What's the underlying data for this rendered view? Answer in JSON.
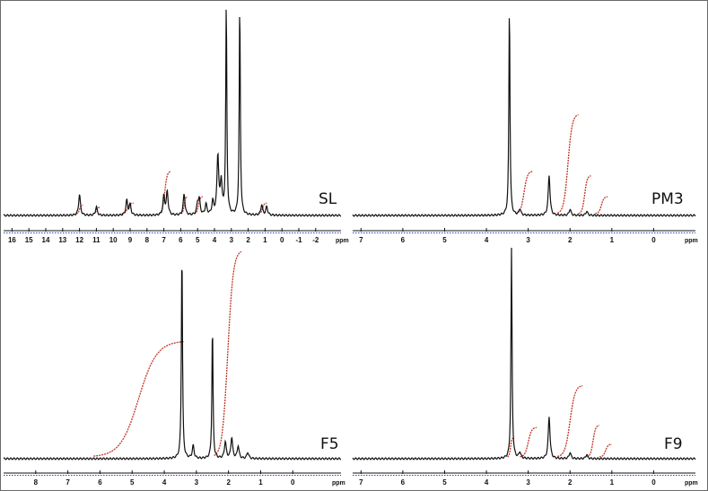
{
  "colors": {
    "spectrum": "#111111",
    "integral": "#c0392b",
    "axis_dash": "#2b4ea8",
    "axis": "#111111"
  },
  "chart_data": [
    {
      "type": "line",
      "label": "SL",
      "xlabel": "ppm",
      "xlim": [
        16.5,
        -3.5
      ],
      "x_ticks": [
        "16",
        "15",
        "14",
        "13",
        "12",
        "11",
        "10",
        "9",
        "8",
        "7",
        "6",
        "5",
        "4",
        "3",
        "2",
        "1",
        "0",
        "-1",
        "-2"
      ],
      "peaks": [
        {
          "x": 12.0,
          "y": 0.1
        },
        {
          "x": 11.0,
          "y": 0.04
        },
        {
          "x": 9.2,
          "y": 0.07
        },
        {
          "x": 9.0,
          "y": 0.05
        },
        {
          "x": 7.0,
          "y": 0.09
        },
        {
          "x": 6.8,
          "y": 0.11
        },
        {
          "x": 5.8,
          "y": 0.1
        },
        {
          "x": 5.0,
          "y": 0.05
        },
        {
          "x": 4.9,
          "y": 0.07
        },
        {
          "x": 4.5,
          "y": 0.05
        },
        {
          "x": 4.1,
          "y": 0.06
        },
        {
          "x": 3.8,
          "y": 0.28
        },
        {
          "x": 3.6,
          "y": 0.15
        },
        {
          "x": 3.3,
          "y": 1.0
        },
        {
          "x": 2.5,
          "y": 1.0
        },
        {
          "x": 1.2,
          "y": 0.05
        },
        {
          "x": 0.9,
          "y": 0.04
        }
      ],
      "integrals": [
        {
          "start": 12.2,
          "end": 11.8,
          "rise": 0.04
        },
        {
          "start": 11.2,
          "end": 10.8,
          "rise": 0.03
        },
        {
          "start": 9.5,
          "end": 8.8,
          "rise": 0.05
        },
        {
          "start": 7.3,
          "end": 6.6,
          "rise": 0.2
        },
        {
          "start": 6.0,
          "end": 5.6,
          "rise": 0.08
        },
        {
          "start": 5.2,
          "end": 4.7,
          "rise": 0.08
        },
        {
          "start": 1.4,
          "end": 0.9,
          "rise": 0.05
        }
      ]
    },
    {
      "type": "line",
      "label": "PM3",
      "xlabel": "ppm",
      "xlim": [
        7.2,
        -1.0
      ],
      "x_ticks": [
        "7",
        "6",
        "5",
        "4",
        "3",
        "2",
        "1",
        "0"
      ],
      "peaks": [
        {
          "x": 3.45,
          "y": 1.0
        },
        {
          "x": 3.2,
          "y": 0.03
        },
        {
          "x": 2.5,
          "y": 0.19
        },
        {
          "x": 2.0,
          "y": 0.03
        },
        {
          "x": 1.6,
          "y": 0.02
        }
      ],
      "integrals": [
        {
          "start": 3.3,
          "end": 2.9,
          "rise": 0.2
        },
        {
          "start": 2.3,
          "end": 1.8,
          "rise": 0.47
        },
        {
          "start": 1.8,
          "end": 1.5,
          "rise": 0.18
        },
        {
          "start": 1.4,
          "end": 1.1,
          "rise": 0.08
        }
      ]
    },
    {
      "type": "line",
      "label": "F5",
      "xlabel": "ppm",
      "xlim": [
        9.0,
        -1.5
      ],
      "x_ticks": [
        "8",
        "7",
        "6",
        "5",
        "4",
        "3",
        "2",
        "1",
        "0"
      ],
      "peaks": [
        {
          "x": 3.45,
          "y": 1.0
        },
        {
          "x": 3.1,
          "y": 0.06
        },
        {
          "x": 2.5,
          "y": 0.63
        },
        {
          "x": 2.1,
          "y": 0.08
        },
        {
          "x": 1.9,
          "y": 0.1
        },
        {
          "x": 1.7,
          "y": 0.06
        },
        {
          "x": 1.4,
          "y": 0.03
        }
      ],
      "integrals": [
        {
          "start": 6.2,
          "end": 3.4,
          "rise": 0.55
        },
        {
          "start": 2.45,
          "end": 1.6,
          "rise": 0.98
        }
      ]
    },
    {
      "type": "line",
      "label": "F9",
      "xlabel": "ppm",
      "xlim": [
        7.2,
        -1.0
      ],
      "x_ticks": [
        "7",
        "6",
        "5",
        "4",
        "3",
        "2",
        "1",
        "0"
      ],
      "peaks": [
        {
          "x": 3.4,
          "y": 1.0
        },
        {
          "x": 3.2,
          "y": 0.03
        },
        {
          "x": 2.5,
          "y": 0.2
        },
        {
          "x": 2.0,
          "y": 0.03
        },
        {
          "x": 1.6,
          "y": 0.02
        }
      ],
      "integrals": [
        {
          "start": 3.5,
          "end": 3.35,
          "rise": 0.09
        },
        {
          "start": 3.2,
          "end": 2.8,
          "rise": 0.14
        },
        {
          "start": 2.3,
          "end": 1.7,
          "rise": 0.34
        },
        {
          "start": 1.6,
          "end": 1.3,
          "rise": 0.15
        },
        {
          "start": 1.3,
          "end": 1.0,
          "rise": 0.06
        }
      ]
    }
  ]
}
